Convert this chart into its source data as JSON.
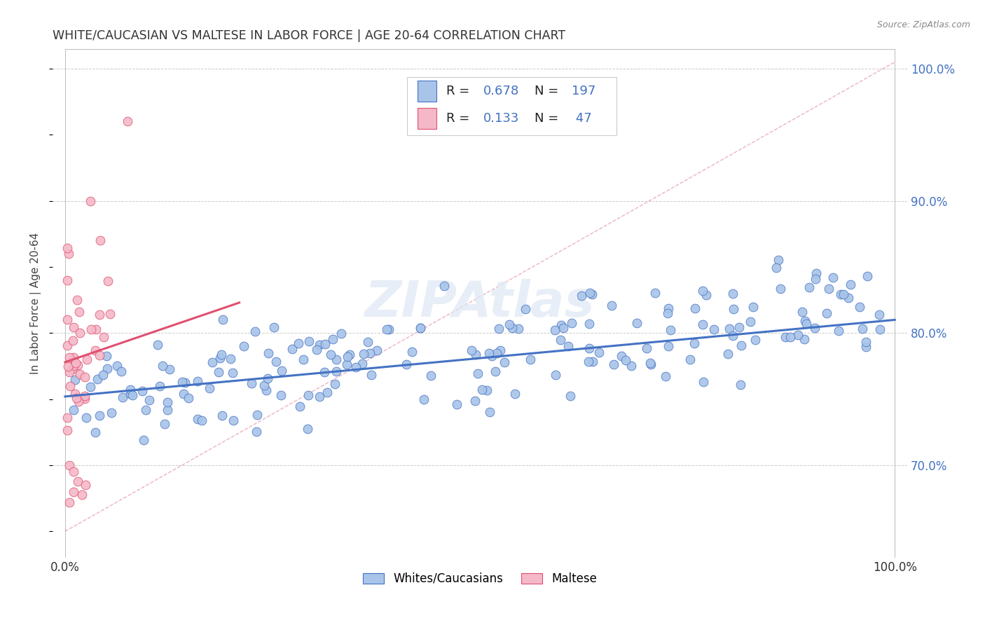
{
  "title": "WHITE/CAUCASIAN VS MALTESE IN LABOR FORCE | AGE 20-64 CORRELATION CHART",
  "source": "Source: ZipAtlas.com",
  "ylabel": "In Labor Force | Age 20-64",
  "watermark": "ZIPAtlas",
  "blue_color": "#4472c4",
  "pink_color": "#e05070",
  "blue_scatter_color": "#a8c4e8",
  "pink_scatter_color": "#f4b8c8",
  "dashed_line_color": "#e08098",
  "title_color": "#333333",
  "background_color": "#ffffff",
  "ylim": [
    0.63,
    1.015
  ],
  "xlim": [
    -0.015,
    1.015
  ],
  "yticks": [
    0.7,
    0.8,
    0.9,
    1.0
  ],
  "ytick_labels": [
    "70.0%",
    "80.0%",
    "90.0%",
    "100.0%"
  ],
  "xticks": [
    0.0,
    1.0
  ],
  "xtick_labels": [
    "0.0%",
    "100.0%"
  ],
  "blue_line": {
    "x0": 0.0,
    "x1": 1.0,
    "y0": 0.752,
    "y1": 0.81
  },
  "pink_line": {
    "x0": 0.0,
    "x1": 0.21,
    "y0": 0.778,
    "y1": 0.823
  },
  "dashed_line": {
    "x0": 0.0,
    "x1": 1.0,
    "y0": 0.65,
    "y1": 1.005
  },
  "legend_box": {
    "R_blue": "0.678",
    "N_blue": "197",
    "R_pink": "0.133",
    "N_pink": " 47"
  }
}
